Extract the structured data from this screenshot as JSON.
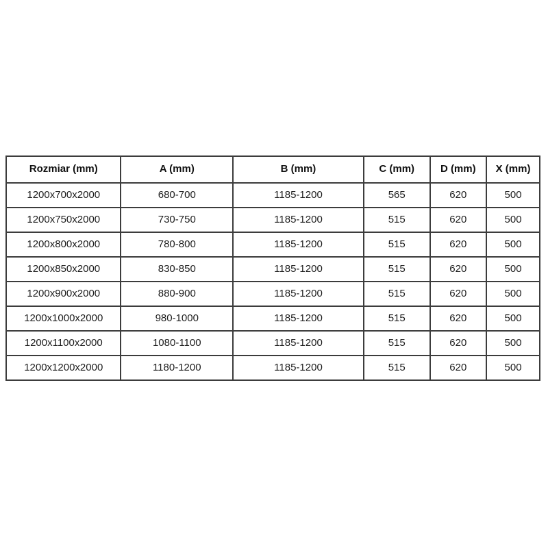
{
  "table": {
    "name": "shower-enclosure-dimensions",
    "border_color": "#3c3c3c",
    "background_color": "#ffffff",
    "text_color": "#1c1c1c",
    "columns": [
      "Rozmiar (mm)",
      "A (mm)",
      "B (mm)",
      "C (mm)",
      "D (mm)",
      "X (mm)"
    ],
    "rows": [
      [
        "1200x700x2000",
        "680-700",
        "1185-1200",
        "565",
        "620",
        "500"
      ],
      [
        "1200x750x2000",
        "730-750",
        "1185-1200",
        "515",
        "620",
        "500"
      ],
      [
        "1200x800x2000",
        "780-800",
        "1185-1200",
        "515",
        "620",
        "500"
      ],
      [
        "1200x850x2000",
        "830-850",
        "1185-1200",
        "515",
        "620",
        "500"
      ],
      [
        "1200x900x2000",
        "880-900",
        "1185-1200",
        "515",
        "620",
        "500"
      ],
      [
        "1200x1000x2000",
        "980-1000",
        "1185-1200",
        "515",
        "620",
        "500"
      ],
      [
        "1200x1100x2000",
        "1080-1100",
        "1185-1200",
        "515",
        "620",
        "500"
      ],
      [
        "1200x1200x2000",
        "1180-1200",
        "1185-1200",
        "515",
        "620",
        "500"
      ]
    ]
  }
}
